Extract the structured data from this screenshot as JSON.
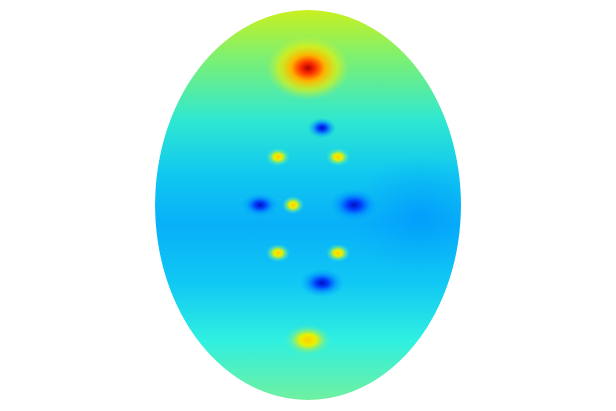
{
  "colormap": "jet",
  "background": "#ffffff",
  "field": {
    "shape": "ellipse",
    "hotspots": [
      {
        "name": "top-maximum",
        "color": "#c80000"
      },
      {
        "name": "upper-minimum",
        "color": "#1a5cff"
      },
      {
        "name": "upper-left-peak",
        "color": "#e8e800"
      },
      {
        "name": "upper-right-peak",
        "color": "#d8e800"
      },
      {
        "name": "left-minimum",
        "color": "#0a2cff"
      },
      {
        "name": "center-peak",
        "color": "#f0e000"
      },
      {
        "name": "right-minimum",
        "color": "#0020f0"
      },
      {
        "name": "lower-left-peak",
        "color": "#c8e820"
      },
      {
        "name": "lower-right-peak",
        "color": "#c8e820"
      },
      {
        "name": "lower-minimum",
        "color": "#0a30e0"
      },
      {
        "name": "bottom-peak",
        "color": "#f0e000"
      }
    ]
  }
}
